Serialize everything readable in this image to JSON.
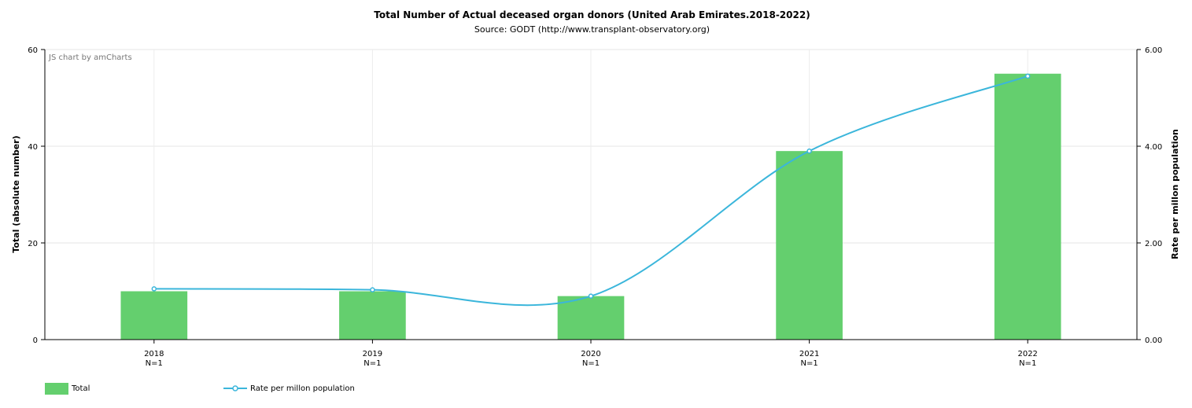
{
  "chart_data": {
    "type": "bar",
    "title": "Total Number of Actual deceased organ donors (United Arab Emirates.2018-2022)",
    "subtitle": "Source: GODT (http://www.transplant-observatory.org)",
    "credit": "JS chart by amCharts",
    "categories": [
      "2018",
      "2019",
      "2020",
      "2021",
      "2022"
    ],
    "category_sublabels": [
      "N=1",
      "N=1",
      "N=1",
      "N=1",
      "N=1"
    ],
    "y_left": {
      "label": "Total (absolute number)",
      "ylim": [
        0,
        60
      ],
      "ticks": [
        "0",
        "20",
        "40",
        "60"
      ]
    },
    "y_right": {
      "label": "Rate per millon population",
      "ylim": [
        0,
        6
      ],
      "ticks": [
        "0.00",
        "2.00",
        "4.00",
        "6.00"
      ]
    },
    "series": [
      {
        "name": "Total",
        "type": "bar",
        "axis": "left",
        "color": "#64cf6e",
        "values": [
          10,
          10,
          9,
          39,
          55
        ]
      },
      {
        "name": "Rate per millon population",
        "type": "line",
        "axis": "right",
        "color": "#3bb6db",
        "smoothed": true,
        "values": [
          1.05,
          1.03,
          0.9,
          3.9,
          5.45
        ]
      }
    ],
    "grid": true,
    "legend_position": "bottom-left"
  }
}
